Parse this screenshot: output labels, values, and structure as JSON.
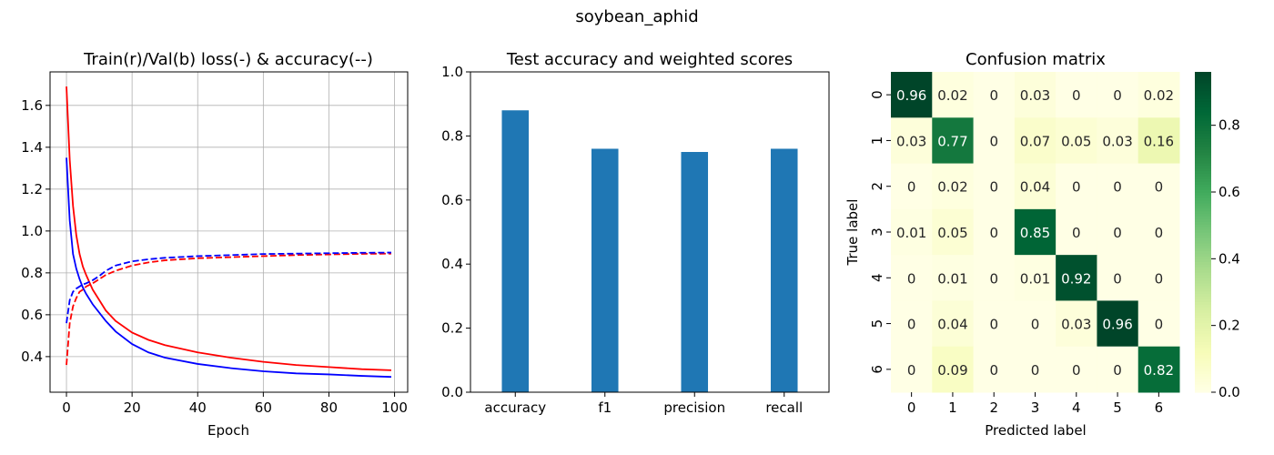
{
  "suptitle": "soybean_aphid",
  "chart_data": [
    {
      "type": "line",
      "title": "Train(r)/Val(b) loss(-) & accuracy(--)",
      "xlabel": "Epoch",
      "ylabel": "",
      "xlim": [
        -5,
        104
      ],
      "ylim": [
        0.23,
        1.76
      ],
      "xticks": [
        0,
        20,
        40,
        60,
        80,
        100
      ],
      "yticks": [
        0.4,
        0.6,
        0.8,
        1.0,
        1.2,
        1.4,
        1.6
      ],
      "ytick_labels": [
        "0.4",
        "0.6",
        "0.8",
        "1.0",
        "1.2",
        "1.4",
        "1.6"
      ],
      "grid": true,
      "series": [
        {
          "color": "#ff0000",
          "style": "solid",
          "x": [
            0,
            1,
            2,
            3,
            4,
            5,
            6,
            8,
            10,
            12,
            15,
            20,
            25,
            30,
            40,
            50,
            60,
            70,
            80,
            90,
            99
          ],
          "values": [
            1.69,
            1.34,
            1.12,
            0.98,
            0.89,
            0.83,
            0.79,
            0.72,
            0.67,
            0.62,
            0.57,
            0.515,
            0.48,
            0.455,
            0.42,
            0.395,
            0.375,
            0.36,
            0.35,
            0.34,
            0.335
          ]
        },
        {
          "color": "#0000ff",
          "style": "solid",
          "x": [
            0,
            1,
            2,
            3,
            4,
            5,
            6,
            8,
            10,
            12,
            15,
            20,
            25,
            30,
            40,
            50,
            60,
            70,
            80,
            90,
            99
          ],
          "values": [
            1.35,
            1.05,
            0.89,
            0.82,
            0.77,
            0.73,
            0.7,
            0.65,
            0.61,
            0.57,
            0.52,
            0.46,
            0.42,
            0.395,
            0.365,
            0.345,
            0.33,
            0.32,
            0.315,
            0.308,
            0.303
          ]
        },
        {
          "color": "#ff0000",
          "style": "dashed",
          "x": [
            0,
            1,
            2,
            3,
            4,
            5,
            6,
            8,
            10,
            12,
            15,
            20,
            25,
            30,
            40,
            50,
            60,
            70,
            80,
            90,
            99
          ],
          "values": [
            0.36,
            0.56,
            0.64,
            0.68,
            0.71,
            0.72,
            0.735,
            0.75,
            0.77,
            0.79,
            0.81,
            0.835,
            0.85,
            0.86,
            0.87,
            0.875,
            0.88,
            0.885,
            0.888,
            0.891,
            0.892
          ]
        },
        {
          "color": "#0000ff",
          "style": "dashed",
          "x": [
            0,
            1,
            2,
            3,
            4,
            5,
            6,
            8,
            10,
            12,
            15,
            20,
            25,
            30,
            40,
            50,
            60,
            70,
            80,
            90,
            99
          ],
          "values": [
            0.56,
            0.67,
            0.71,
            0.725,
            0.735,
            0.745,
            0.75,
            0.765,
            0.785,
            0.81,
            0.835,
            0.855,
            0.865,
            0.872,
            0.88,
            0.885,
            0.89,
            0.892,
            0.894,
            0.896,
            0.897
          ]
        }
      ]
    },
    {
      "type": "bar",
      "title": "Test accuracy and weighted scores",
      "categories": [
        "accuracy",
        "f1",
        "precision",
        "recall"
      ],
      "values": [
        0.88,
        0.76,
        0.75,
        0.76
      ],
      "ylim": [
        0,
        1.0
      ],
      "yticks": [
        0.0,
        0.2,
        0.4,
        0.6,
        0.8,
        1.0
      ],
      "ytick_labels": [
        "0.0",
        "0.2",
        "0.4",
        "0.6",
        "0.8",
        "1.0"
      ],
      "color": "#1f77b4",
      "grid": false
    },
    {
      "type": "heatmap",
      "title": "Confusion matrix",
      "xlabel": "Predicted label",
      "ylabel": "True label",
      "x_categories": [
        "0",
        "1",
        "2",
        "3",
        "4",
        "5",
        "6"
      ],
      "y_categories": [
        "0",
        "1",
        "2",
        "3",
        "4",
        "5",
        "6"
      ],
      "matrix": [
        [
          0.96,
          0.02,
          0,
          0.03,
          0,
          0,
          0.02
        ],
        [
          0.03,
          0.77,
          0,
          0.07,
          0.05,
          0.03,
          0.16
        ],
        [
          0,
          0.02,
          0,
          0.04,
          0,
          0,
          0
        ],
        [
          0.01,
          0.05,
          0,
          0.85,
          0,
          0,
          0
        ],
        [
          0,
          0.01,
          0,
          0.01,
          0.92,
          0,
          0
        ],
        [
          0,
          0.04,
          0,
          0,
          0.03,
          0.96,
          0
        ],
        [
          0,
          0.09,
          0,
          0,
          0,
          0,
          0.82
        ]
      ],
      "cell_labels": [
        [
          "0.96",
          "0.02",
          "0",
          "0.03",
          "0",
          "0",
          "0.02"
        ],
        [
          "0.03",
          "0.77",
          "0",
          "0.07",
          "0.05",
          "0.03",
          "0.16"
        ],
        [
          "0",
          "0.02",
          "0",
          "0.04",
          "0",
          "0",
          "0"
        ],
        [
          "0.01",
          "0.05",
          "0",
          "0.85",
          "0",
          "0",
          "0"
        ],
        [
          "0",
          "0.01",
          "0",
          "0.01",
          "0.92",
          "0",
          "0"
        ],
        [
          "0",
          "0.04",
          "0",
          "0",
          "0.03",
          "0.96",
          "0"
        ],
        [
          "0",
          "0.09",
          "0",
          "0",
          "0",
          "0",
          "0.82"
        ]
      ],
      "colormap": "YlGn",
      "vmin": 0,
      "vmax": 0.96,
      "colorbar_ticks": [
        0.0,
        0.2,
        0.4,
        0.6,
        0.8
      ],
      "colorbar_tick_labels": [
        "0.0",
        "0.2",
        "0.4",
        "0.6",
        "0.8"
      ]
    }
  ]
}
